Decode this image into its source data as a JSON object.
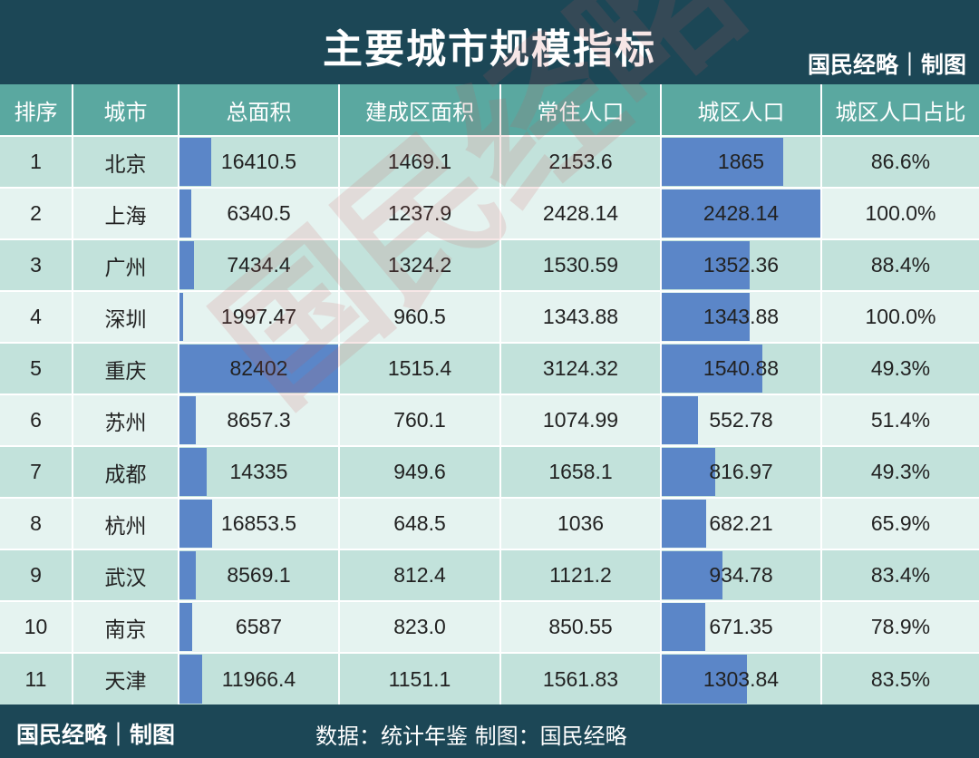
{
  "title": "主要城市规模指标",
  "brand": "国民经略｜制图",
  "footer": {
    "brand": "国民经略｜制图",
    "source": "数据：统计年鉴  制图：国民经略"
  },
  "watermark": "国民经略",
  "colors": {
    "header_bg": "#1c4756",
    "column_header_bg": "#5aa8a0",
    "row_dark": "#c2e2db",
    "row_light": "#e5f3f0",
    "data_bar": "#5b86c8"
  },
  "chart_data": {
    "type": "table",
    "title": "主要城市规模指标",
    "columns": [
      "排序",
      "城市",
      "总面积",
      "建成区面积",
      "常住人口",
      "城区人口",
      "城区人口占比"
    ],
    "data_bar_columns": [
      "总面积",
      "城区人口"
    ],
    "rows": [
      [
        "1",
        "北京",
        "16410.5",
        "1469.1",
        "2153.6",
        "1865",
        "86.6%"
      ],
      [
        "2",
        "上海",
        "6340.5",
        "1237.9",
        "2428.14",
        "2428.14",
        "100.0%"
      ],
      [
        "3",
        "广州",
        "7434.4",
        "1324.2",
        "1530.59",
        "1352.36",
        "88.4%"
      ],
      [
        "4",
        "深圳",
        "1997.47",
        "960.5",
        "1343.88",
        "1343.88",
        "100.0%"
      ],
      [
        "5",
        "重庆",
        "82402",
        "1515.4",
        "3124.32",
        "1540.88",
        "49.3%"
      ],
      [
        "6",
        "苏州",
        "8657.3",
        "760.1",
        "1074.99",
        "552.78",
        "51.4%"
      ],
      [
        "7",
        "成都",
        "14335",
        "949.6",
        "1658.1",
        "816.97",
        "49.3%"
      ],
      [
        "8",
        "杭州",
        "16853.5",
        "648.5",
        "1036",
        "682.21",
        "65.9%"
      ],
      [
        "9",
        "武汉",
        "8569.1",
        "812.4",
        "1121.2",
        "934.78",
        "83.4%"
      ],
      [
        "10",
        "南京",
        "6587",
        "823.0",
        "850.55",
        "671.35",
        "78.9%"
      ],
      [
        "11",
        "天津",
        "11966.4",
        "1151.1",
        "1561.83",
        "1303.84",
        "83.5%"
      ]
    ]
  }
}
